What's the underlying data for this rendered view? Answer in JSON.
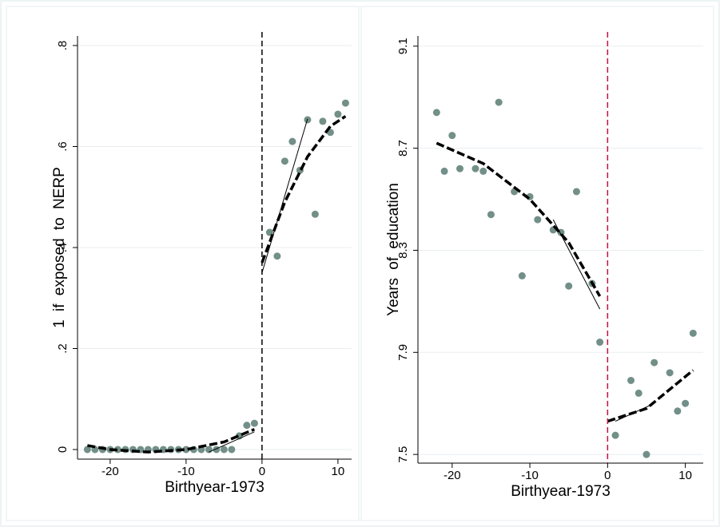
{
  "chart_data": [
    {
      "type": "scatter",
      "x_label": "Birthyear-1973",
      "y_label": "1 if exposed to NERP",
      "xlim": [
        -24.3,
        11.8
      ],
      "ylim": [
        -0.019,
        0.819
      ],
      "xticks": [
        -20,
        -10,
        0,
        10
      ],
      "yticks": [
        0,
        {
          "value": 0.2,
          "label": ".2"
        },
        {
          "value": 0.4,
          "label": ".4"
        },
        {
          "value": 0.6,
          "label": ".6"
        },
        {
          "value": 0.8,
          "label": ".8"
        }
      ],
      "grid": true,
      "xline": 0,
      "xline_color": "#000000",
      "series": [
        {
          "style": "points",
          "color": "#728f88",
          "x": [
            -23,
            -22,
            -21,
            -20,
            -19,
            -18,
            -17,
            -16,
            -15,
            -14,
            -13,
            -12,
            -11,
            -10,
            -9,
            -8,
            -7,
            -6,
            -5,
            -4,
            -3,
            -2,
            -1,
            1,
            2,
            3,
            4,
            5,
            6,
            7,
            8,
            9,
            10,
            11
          ],
          "values": [
            0,
            0,
            0,
            0,
            0,
            0,
            0,
            0,
            0,
            0,
            0,
            0,
            0,
            0,
            0,
            0,
            0,
            0,
            0,
            0,
            0.027,
            0.048,
            0.052,
            0.43,
            0.383,
            0.571,
            0.61,
            0.553,
            0.653,
            0.466,
            0.65,
            0.628,
            0.664,
            0.686
          ]
        },
        {
          "style": "dashed",
          "color": "#000000",
          "x": [
            -23,
            -20,
            -15,
            -10,
            -5,
            -1
          ],
          "values": [
            0.008,
            0,
            -0.005,
            0,
            0.015,
            0.04
          ]
        },
        {
          "style": "dashed",
          "color": "#000000",
          "x": [
            0,
            3,
            6,
            9,
            11
          ],
          "values": [
            0.37,
            0.49,
            0.58,
            0.64,
            0.66
          ]
        },
        {
          "style": "thin",
          "color": "#000000",
          "x": [
            -7,
            -1
          ],
          "values": [
            -0.005,
            0.035
          ]
        },
        {
          "style": "thin",
          "color": "#000000",
          "x": [
            0,
            6
          ],
          "values": [
            0.35,
            0.655
          ]
        }
      ]
    },
    {
      "type": "scatter",
      "x_label": "Birthyear-1973",
      "y_label": "Years of education",
      "xlim": [
        -24.4,
        12.3
      ],
      "ylim": [
        7.466,
        9.14
      ],
      "xticks": [
        -20,
        -10,
        0,
        10
      ],
      "yticks": [
        7.5,
        7.9,
        8.3,
        8.7,
        9.1
      ],
      "grid": true,
      "xline": 0,
      "xline_color": "#c8103c",
      "series": [
        {
          "style": "points",
          "color": "#728f88",
          "x": [
            -22,
            -21,
            -20,
            -19,
            -17,
            -16,
            -15,
            -14,
            -12,
            -11,
            -10,
            -9,
            -7,
            -6,
            -5,
            -4,
            -2,
            -1,
            1,
            3,
            4,
            5,
            6,
            8,
            9,
            10,
            11
          ],
          "values": [
            8.84,
            8.61,
            8.75,
            8.62,
            8.62,
            8.61,
            8.44,
            8.88,
            8.53,
            8.2,
            8.51,
            8.42,
            8.38,
            8.37,
            8.16,
            8.53,
            8.17,
            7.94,
            7.575,
            7.79,
            7.74,
            7.5,
            7.86,
            7.82,
            7.67,
            7.7,
            7.975
          ]
        },
        {
          "style": "dashed",
          "color": "#000000",
          "x": [
            -22,
            -16,
            -10,
            -5,
            -1
          ],
          "values": [
            8.72,
            8.64,
            8.5,
            8.33,
            8.12
          ]
        },
        {
          "style": "dashed",
          "color": "#000000",
          "x": [
            0,
            5,
            11
          ],
          "values": [
            7.63,
            7.68,
            7.83
          ]
        },
        {
          "style": "thin",
          "color": "#000000",
          "x": [
            -7,
            -1
          ],
          "values": [
            8.42,
            8.07
          ]
        },
        {
          "style": "thin",
          "color": "#000000",
          "x": [
            1,
            6
          ],
          "values": [
            7.63,
            7.7
          ]
        }
      ]
    }
  ]
}
